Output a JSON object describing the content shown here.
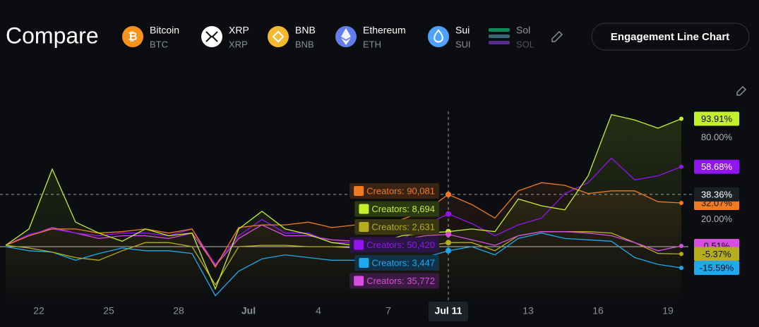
{
  "header": {
    "title": "Compare",
    "coins": [
      {
        "name": "Bitcoin",
        "ticker": "BTC"
      },
      {
        "name": "XRP",
        "ticker": "XRP"
      },
      {
        "name": "BNB",
        "ticker": "BNB"
      },
      {
        "name": "Ethereum",
        "ticker": "ETH"
      },
      {
        "name": "Sui",
        "ticker": "SUI"
      },
      {
        "name": "Sol",
        "ticker": "SOL"
      }
    ],
    "button": "Engagement Line Chart"
  },
  "chart_data": {
    "type": "line",
    "categories": [
      null,
      "22",
      null,
      null,
      "25",
      null,
      null,
      "28",
      null,
      null,
      "Jul",
      null,
      null,
      "4",
      null,
      null,
      "7",
      null,
      null,
      "Jul 11",
      null,
      null,
      "13",
      null,
      null,
      "16",
      null,
      null,
      "19",
      null
    ],
    "ylim": [
      -41.4,
      103.5
    ],
    "yticks": [
      {
        "value": 80,
        "label": "80.00%"
      },
      {
        "value": 20,
        "label": "20.00%"
      }
    ],
    "crosshair": {
      "x": "Jul 11",
      "value": 38.36,
      "label": "38.36%"
    },
    "series": [
      {
        "name": "Bitcoin",
        "color": "#f07b22",
        "tooltip": "Creators: 90,081",
        "values": [
          1,
          8,
          13,
          13,
          10,
          11,
          13,
          10,
          13,
          -15,
          14,
          16,
          16,
          18,
          14,
          16,
          18,
          20,
          26,
          38.36,
          31,
          21,
          41,
          47,
          45,
          39,
          41,
          41,
          33,
          32.07
        ],
        "value_labels": [
          null,
          null,
          null,
          null,
          null,
          null,
          null,
          null,
          null,
          null,
          null,
          null,
          null,
          null,
          null,
          null,
          null,
          null,
          null,
          null,
          null,
          null,
          null,
          null,
          null,
          null,
          null,
          null,
          null,
          "32.07%"
        ]
      },
      {
        "name": "XRP",
        "color": "#c3f02c",
        "tooltip": "Creators: 8,694",
        "values": [
          1,
          13,
          57,
          18,
          10,
          4,
          13,
          8,
          10,
          -31,
          13,
          26,
          13,
          9,
          3,
          1,
          3,
          8,
          10,
          11,
          13,
          11,
          35,
          30,
          27,
          52,
          97,
          93,
          87,
          93.91
        ],
        "value_labels": [
          null,
          null,
          null,
          null,
          null,
          null,
          null,
          null,
          null,
          null,
          null,
          null,
          null,
          null,
          null,
          null,
          null,
          null,
          null,
          null,
          null,
          null,
          null,
          null,
          null,
          null,
          null,
          null,
          null,
          "93.91%"
        ]
      },
      {
        "name": "BNB",
        "color": "#b5ad1c",
        "tooltip": "Creators: 2,631",
        "values": [
          1,
          -1,
          -4,
          -8,
          -10,
          -3,
          3,
          3,
          0,
          -28,
          0,
          1,
          1,
          0,
          0,
          -1,
          -3,
          0,
          0,
          3,
          3,
          -3,
          8,
          11,
          11,
          11,
          10,
          3,
          -5,
          -5.37
        ],
        "value_labels": [
          null,
          null,
          null,
          null,
          null,
          null,
          null,
          null,
          null,
          null,
          null,
          null,
          null,
          null,
          null,
          null,
          null,
          null,
          null,
          null,
          null,
          null,
          null,
          null,
          null,
          null,
          null,
          null,
          null,
          "-5.37%"
        ]
      },
      {
        "name": "Ethereum",
        "color": "#9214f0",
        "tooltip": "Creators: 50,420",
        "values": [
          1,
          9,
          13,
          10,
          8,
          10,
          10,
          8,
          13,
          -13,
          8,
          20,
          10,
          10,
          3,
          3,
          3,
          5,
          16,
          24,
          17,
          8,
          16,
          21,
          39,
          47,
          65,
          49,
          52,
          58.68
        ],
        "value_labels": [
          null,
          null,
          null,
          null,
          null,
          null,
          null,
          null,
          null,
          null,
          null,
          null,
          null,
          null,
          null,
          null,
          null,
          null,
          null,
          null,
          null,
          null,
          null,
          null,
          null,
          null,
          null,
          null,
          null,
          "58.68%"
        ]
      },
      {
        "name": "Sui",
        "color": "#1ea8ee",
        "tooltip": "Creators: 3,447",
        "values": [
          0,
          -3,
          -4,
          -10,
          -5,
          -1,
          -3,
          -3,
          -5,
          -36,
          -18,
          -9,
          -6,
          -8,
          -10,
          -10,
          -11,
          -10,
          -8,
          -3,
          0,
          -6,
          6,
          10,
          6,
          5,
          4,
          -8,
          -13,
          -15.59
        ],
        "value_labels": [
          null,
          null,
          null,
          null,
          null,
          null,
          null,
          null,
          null,
          null,
          null,
          null,
          null,
          null,
          null,
          null,
          null,
          null,
          null,
          null,
          null,
          null,
          null,
          null,
          null,
          null,
          null,
          null,
          null,
          "-15.59%"
        ]
      },
      {
        "name": "Sol",
        "color": "#d84ee0",
        "tooltip": "Creators: 35,772",
        "values": [
          1,
          8,
          14,
          10,
          6,
          8,
          8,
          6,
          10,
          -14,
          6,
          16,
          8,
          8,
          5,
          4,
          5,
          5,
          8,
          9,
          5,
          1,
          8,
          11,
          11,
          10,
          8,
          3,
          -3,
          0.51
        ],
        "value_labels": [
          null,
          null,
          null,
          null,
          null,
          null,
          null,
          null,
          null,
          null,
          null,
          null,
          null,
          null,
          null,
          null,
          null,
          null,
          null,
          null,
          null,
          null,
          null,
          null,
          null,
          null,
          null,
          null,
          null,
          "0.51%"
        ]
      }
    ]
  }
}
